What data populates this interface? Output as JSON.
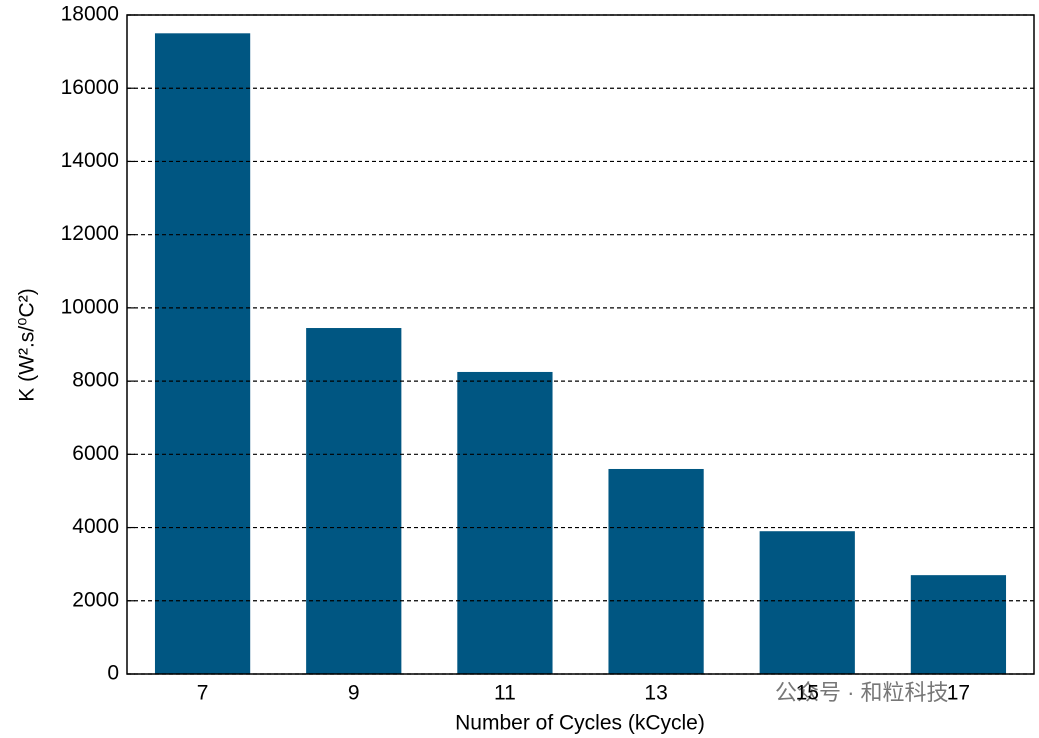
{
  "chart_data": {
    "type": "bar",
    "x_label": "Number of Cycles (kCycle)",
    "y_label": "K (W².s/⁰C²)",
    "categories": [
      "7",
      "9",
      "11",
      "13",
      "15",
      "17"
    ],
    "values": [
      17500,
      9450,
      8250,
      5600,
      3900,
      2700
    ],
    "color": "#005682",
    "ylim": [
      0,
      18000
    ],
    "yticks": [
      0,
      2000,
      4000,
      6000,
      8000,
      10000,
      12000,
      14000,
      16000,
      18000
    ],
    "grid": true,
    "watermark": "公众号 · 和粒科技"
  }
}
